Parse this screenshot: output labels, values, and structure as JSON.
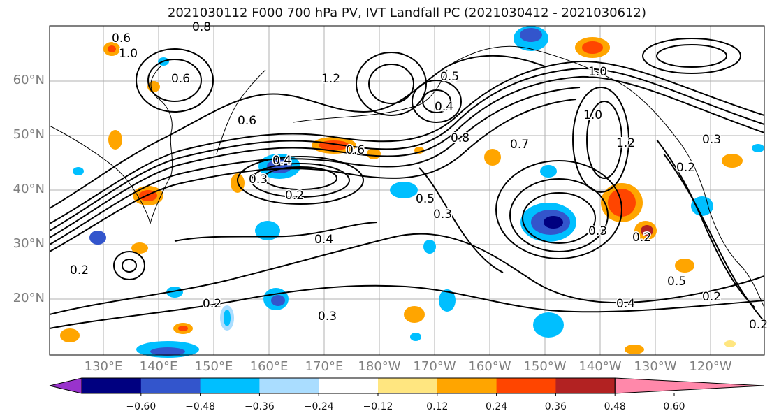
{
  "title": "2021030112 F000 700 hPa PV, IVT Landfall PC (2021030412 - 2021030612)",
  "lat_labels": [
    "60°N",
    "50°N",
    "40°N",
    "30°N",
    "20°N"
  ],
  "lon_labels": [
    "130°E",
    "140°E",
    "150°E",
    "160°E",
    "170°E",
    "180°W",
    "170°W",
    "160°W",
    "150°W",
    "140°W",
    "130°W",
    "120°W"
  ],
  "colorbar": {
    "labels": [
      "-0.60",
      "-0.48",
      "-0.36",
      "-0.24",
      "-0.12",
      "0.12",
      "0.24",
      "0.36",
      "0.48",
      "0.60"
    ],
    "colors": [
      "#9933cc",
      "#000080",
      "#3355cc",
      "#00bfff",
      "#aaddff",
      "#ffffff",
      "#ffe680",
      "#ffa500",
      "#ff4500",
      "#b22222",
      "#ff88aa"
    ]
  },
  "contour_labels": [
    "0.8",
    "0.6",
    "1.0",
    "0.6",
    "1.2",
    "0.5",
    "0.4",
    "1.0",
    "0.6",
    "0.4",
    "0.2",
    "0.3",
    "0.5",
    "0.6",
    "0.7",
    "0.8",
    "0.3",
    "0.4",
    "0.3",
    "0.2",
    "0.4",
    "0.2",
    "0.5",
    "0.3",
    "0.2",
    "0.2",
    "1.2",
    "1.0",
    "0.3",
    "0.2",
    "0.2"
  ]
}
